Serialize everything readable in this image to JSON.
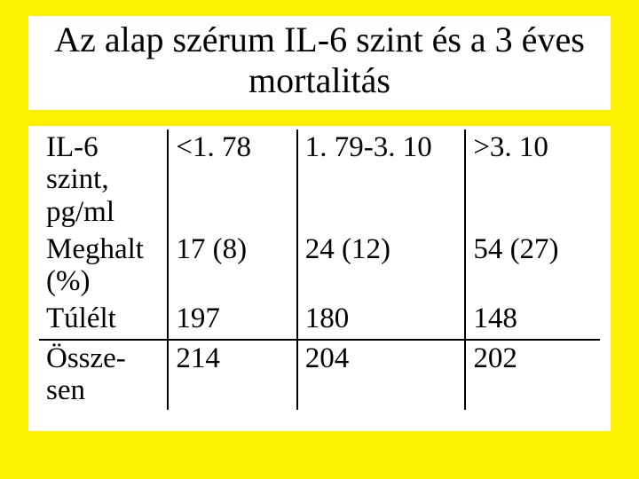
{
  "title": "Az alap szérum IL-6 szint és a 3 éves mortalitás",
  "table": {
    "columns": [
      "",
      "",
      "",
      ""
    ],
    "rows": [
      [
        "IL-6 szint, pg/ml",
        "<1. 78",
        "1. 79-3. 10",
        ">3. 10"
      ],
      [
        "Meghalt (%)",
        "17 (8)",
        "24 (12)",
        "54 (27)"
      ],
      [
        "Túlélt",
        "197",
        "180",
        "148"
      ],
      [
        "Össze-sen",
        "214",
        "204",
        "202"
      ]
    ],
    "border_color": "#000000",
    "background_color": "#ffffff",
    "page_background": "#fdf001",
    "font_family": "Times New Roman",
    "cell_fontsize": 33,
    "title_fontsize": 40,
    "col_widths_pct": [
      23,
      23,
      30,
      24
    ]
  }
}
